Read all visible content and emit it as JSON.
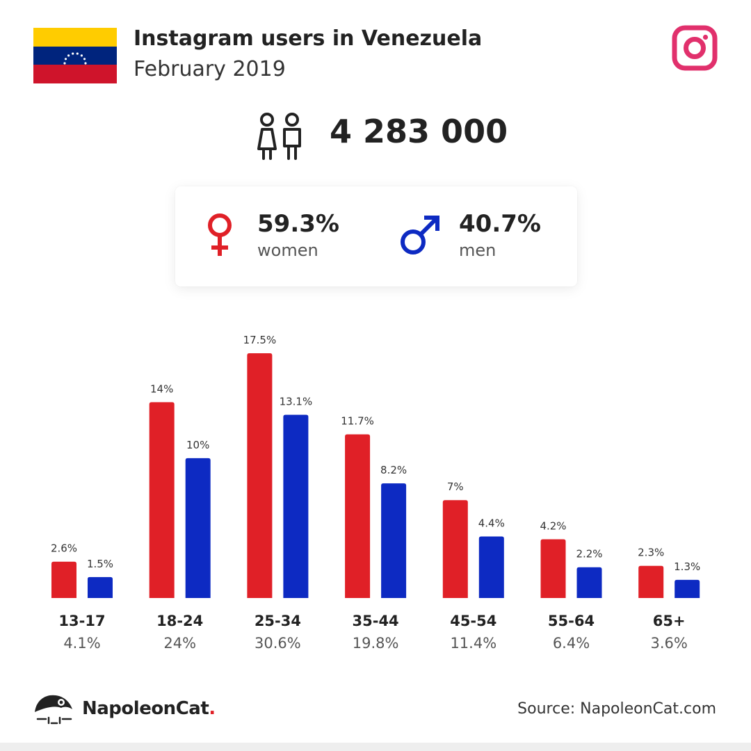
{
  "header": {
    "title": "Instagram users in Venezuela",
    "subtitle": "February 2019"
  },
  "total_users": "4 283 000",
  "gender": {
    "women": {
      "value": "59.3%",
      "label": "women",
      "color": "#e02027"
    },
    "men": {
      "value": "40.7%",
      "label": "men",
      "color": "#0d2ac2"
    }
  },
  "icons": {
    "flag": "venezuela-flag-icon",
    "instagram": "instagram-icon",
    "users": "users-icon",
    "female": "female-symbol-icon",
    "male": "male-symbol-icon",
    "brand": "napoleoncat-logo-icon"
  },
  "colors": {
    "women": "#e02027",
    "men": "#0d2ac2",
    "instagram": "#e1306c",
    "flag_yellow": "#ffcc00",
    "flag_blue": "#00247d",
    "flag_red": "#cf142b"
  },
  "chart_data": {
    "type": "bar",
    "categories": [
      "13-17",
      "18-24",
      "25-34",
      "35-44",
      "45-54",
      "55-64",
      "65+"
    ],
    "category_totals": [
      "4.1%",
      "24%",
      "30.6%",
      "19.8%",
      "11.4%",
      "6.4%",
      "3.6%"
    ],
    "series": [
      {
        "values": [
          2.6,
          14,
          17.5,
          11.7,
          7,
          4.2,
          2.3
        ],
        "labels": [
          "2.6%",
          "14%",
          "17.5%",
          "11.7%",
          "7%",
          "4.2%",
          "2.3%"
        ],
        "color": "#e02027"
      },
      {
        "values": [
          1.5,
          10,
          13.1,
          8.2,
          4.4,
          2.2,
          1.3
        ],
        "labels": [
          "1.5%",
          "10%",
          "13.1%",
          "8.2%",
          "4.4%",
          "2.2%",
          "1.3%"
        ],
        "color": "#0d2ac2"
      }
    ],
    "ylim": [
      0,
      17.5
    ],
    "grid": false,
    "legend": "none"
  },
  "footer": {
    "brand": "NapoleonCat",
    "brand_dot": ".",
    "source": "Source: NapoleonCat.com"
  }
}
